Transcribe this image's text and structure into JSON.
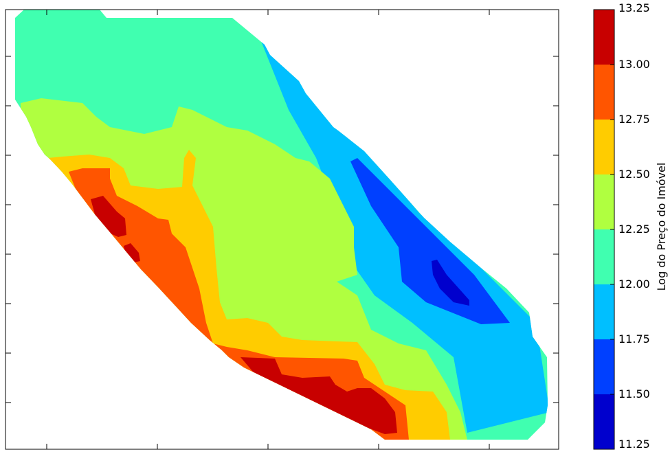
{
  "chart_data": {
    "type": "contour",
    "colorbar": {
      "label": "Log do Preço do Imóvel",
      "levels": [
        11.25,
        11.5,
        11.75,
        12.0,
        12.25,
        12.5,
        12.75,
        13.0,
        13.25
      ],
      "tick_labels": [
        "11.25",
        "11.50",
        "11.75",
        "12.00",
        "12.25",
        "12.50",
        "12.75",
        "13.00",
        "13.25"
      ],
      "band_colors": [
        "#0000cd",
        "#0040ff",
        "#00bfff",
        "#40ffb0",
        "#b0ff40",
        "#ffcc00",
        "#ff5500",
        "#c80000"
      ],
      "orientation": "vertical",
      "placement": "right"
    },
    "axes": {
      "x_tick_labels_visible": false,
      "y_tick_labels_visible": false,
      "grid": false
    }
  }
}
